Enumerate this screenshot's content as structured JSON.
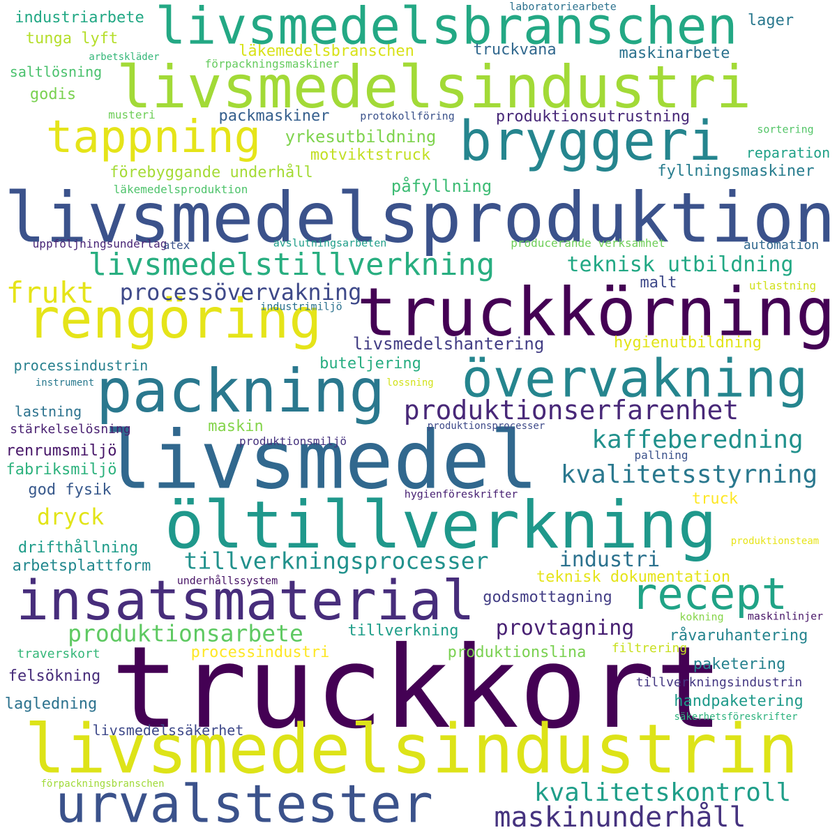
{
  "words": [
    {
      "text": "livsmedelsbranschen",
      "color": "#23a884"
    },
    {
      "text": "livsmedelsindustri",
      "color": "#a2da37"
    },
    {
      "text": "bryggeri",
      "color": "#25858e"
    },
    {
      "text": "tappning",
      "color": "#e5e419"
    },
    {
      "text": "livsmedelsproduktion",
      "color": "#3b528b"
    },
    {
      "text": "truckkörning",
      "color": "#440154"
    },
    {
      "text": "rengöring",
      "color": "#e5e419"
    },
    {
      "text": "packning",
      "color": "#2a788e"
    },
    {
      "text": "övervakning",
      "color": "#25858e"
    },
    {
      "text": "livsmedel",
      "color": "#31688e"
    },
    {
      "text": "öltillverkning",
      "color": "#1f988b"
    },
    {
      "text": "insatsmaterial",
      "color": "#472d7b"
    },
    {
      "text": "recept",
      "color": "#20a386"
    },
    {
      "text": "truckkort",
      "color": "#440154"
    },
    {
      "text": "livsmedelsindustrin",
      "color": "#dde318"
    },
    {
      "text": "urvalstester",
      "color": "#3b528b"
    },
    {
      "text": "maskinunderhåll",
      "color": "#46337f"
    },
    {
      "text": "kvalitetskontroll",
      "color": "#1f9e89"
    },
    {
      "text": "livsmedelstillverkning",
      "color": "#28ae80"
    },
    {
      "text": "processövervakning",
      "color": "#3e4989"
    },
    {
      "text": "frukt",
      "color": "#e5e419"
    },
    {
      "text": "produktionserfarenhet",
      "color": "#482878"
    },
    {
      "text": "kaffeberedning",
      "color": "#21918c"
    },
    {
      "text": "kvalitetsstyrning",
      "color": "#2a788e"
    },
    {
      "text": "tillverkningsprocesser",
      "color": "#21918c"
    },
    {
      "text": "produktionsarbete",
      "color": "#5ec962"
    },
    {
      "text": "provtagning",
      "color": "#482173"
    },
    {
      "text": "industriarbete",
      "color": "#22a884"
    },
    {
      "text": "tunga lyft",
      "color": "#b5de2b"
    },
    {
      "text": "arbetskläder",
      "color": "#35b779"
    },
    {
      "text": "saltlösning",
      "color": "#4ac16d"
    },
    {
      "text": "godis",
      "color": "#7ad151"
    },
    {
      "text": "musteri",
      "color": "#6ece58"
    },
    {
      "text": "laboratoriearbete",
      "color": "#2c728e"
    },
    {
      "text": "lager",
      "color": "#2a788e"
    },
    {
      "text": "läkemedelsbranschen",
      "color": "#d8e219"
    },
    {
      "text": "truckvana",
      "color": "#31688e"
    },
    {
      "text": "maskinarbete",
      "color": "#2c728e"
    },
    {
      "text": "förpackningsmaskiner",
      "color": "#65cb5e"
    },
    {
      "text": "packmaskiner",
      "color": "#355f8d"
    },
    {
      "text": "protokollföring",
      "color": "#3b528b"
    },
    {
      "text": "produktionsutrustning",
      "color": "#482878"
    },
    {
      "text": "yrkesutbildning",
      "color": "#7fd34e"
    },
    {
      "text": "motviktstruck",
      "color": "#c2df23"
    },
    {
      "text": "sortering",
      "color": "#54c568"
    },
    {
      "text": "reparation",
      "color": "#1fa187"
    },
    {
      "text": "förebyggande underhåll",
      "color": "#a5db36"
    },
    {
      "text": "fyllningsmaskiner",
      "color": "#287d8e"
    },
    {
      "text": "påfyllning",
      "color": "#3dbc74"
    },
    {
      "text": "läkemedelsproduktion",
      "color": "#4ec36b"
    },
    {
      "text": "uppföljningsunderlag",
      "color": "#482576"
    },
    {
      "text": "atex",
      "color": "#3b528b"
    },
    {
      "text": "avslutningsarbeten",
      "color": "#1f9e89"
    },
    {
      "text": "producerande verksamhet",
      "color": "#6ece58"
    },
    {
      "text": "automation",
      "color": "#31688e"
    },
    {
      "text": "teknisk utbildning",
      "color": "#22a884"
    },
    {
      "text": "malt",
      "color": "#3e4989"
    },
    {
      "text": "utlastning",
      "color": "#d0e11c"
    },
    {
      "text": "industrimiljö",
      "color": "#2c728e"
    },
    {
      "text": "livsmedelshantering",
      "color": "#433e85"
    },
    {
      "text": "hygienutbildning",
      "color": "#e2e418"
    },
    {
      "text": "processindustrin",
      "color": "#27808e"
    },
    {
      "text": "buteljering",
      "color": "#27ad81"
    },
    {
      "text": "instrument",
      "color": "#29798e"
    },
    {
      "text": "lossning",
      "color": "#d2e21b"
    },
    {
      "text": "lastning",
      "color": "#2c728e"
    },
    {
      "text": "stärkelselösning",
      "color": "#481f70"
    },
    {
      "text": "maskin",
      "color": "#84d44b"
    },
    {
      "text": "produktionsprocesser",
      "color": "#3e4a89"
    },
    {
      "text": "produktionsmiljö",
      "color": "#46327e"
    },
    {
      "text": "renrumsmiljö",
      "color": "#481769"
    },
    {
      "text": "fabriksmiljö",
      "color": "#2db27d"
    },
    {
      "text": "pallning",
      "color": "#3b528b"
    },
    {
      "text": "god fysik",
      "color": "#38598c"
    },
    {
      "text": "hygienföreskrifter",
      "color": "#482173"
    },
    {
      "text": "dryck",
      "color": "#e2e418"
    },
    {
      "text": "truck",
      "color": "#fde725"
    },
    {
      "text": "drifthållning",
      "color": "#1e9c89"
    },
    {
      "text": "produktionsteam",
      "color": "#e7e419"
    },
    {
      "text": "arbetsplattform",
      "color": "#23888e"
    },
    {
      "text": "industri",
      "color": "#2c728e"
    },
    {
      "text": "underhållssystem",
      "color": "#471365"
    },
    {
      "text": "teknisk dokumentation",
      "color": "#e5e419"
    },
    {
      "text": "godsmottagning",
      "color": "#433e85"
    },
    {
      "text": "kokning",
      "color": "#86d549"
    },
    {
      "text": "maskinlinjer",
      "color": "#481668"
    },
    {
      "text": "tillverkning",
      "color": "#1f9e89"
    },
    {
      "text": "råvaruhantering",
      "color": "#25848e"
    },
    {
      "text": "processindustri",
      "color": "#fde725"
    },
    {
      "text": "produktionslina",
      "color": "#7ad151"
    },
    {
      "text": "traverskort",
      "color": "#35b779"
    },
    {
      "text": "filtrering",
      "color": "#c8e020"
    },
    {
      "text": "paketering",
      "color": "#26828e"
    },
    {
      "text": "felsökning",
      "color": "#472c7a"
    },
    {
      "text": "tillverkningsindustrin",
      "color": "#453882"
    },
    {
      "text": "handpaketering",
      "color": "#1f9a8a"
    },
    {
      "text": "lagledning",
      "color": "#2c728e"
    },
    {
      "text": "säkerhetsföreskrifter",
      "color": "#2db27d"
    },
    {
      "text": "livsmedelssäkerhet",
      "color": "#3e4989"
    },
    {
      "text": "förpackningsbranschen",
      "color": "#a0da39"
    }
  ]
}
